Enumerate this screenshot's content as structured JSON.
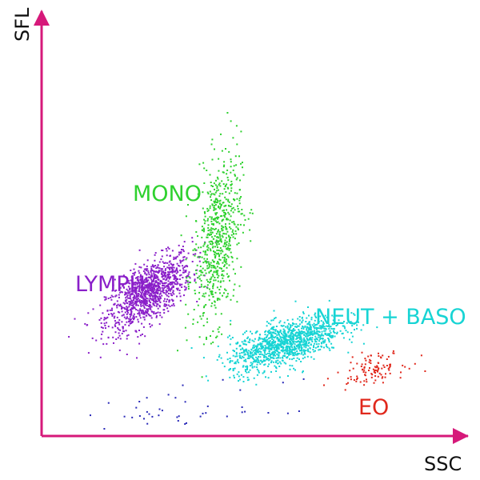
{
  "chart_data": {
    "type": "scatter",
    "title": "",
    "xlabel": "SSC",
    "ylabel": "SFL",
    "xlim": [
      0,
      1
    ],
    "ylim": [
      0,
      1
    ],
    "grid": false,
    "legend": "none",
    "axis_color": "#d6197a",
    "series": [
      {
        "name": "LYMPH",
        "color": "#8a1fc9",
        "count": 1100,
        "center": [
          0.25,
          0.34
        ],
        "spread": [
          0.05,
          0.045
        ],
        "correlation": 0.65,
        "values_note": "point cloud"
      },
      {
        "name": "MONO",
        "color": "#2fd12f",
        "count": 650,
        "center": [
          0.41,
          0.46
        ],
        "spread": [
          0.028,
          0.1
        ],
        "correlation": 0.35,
        "values_note": "point cloud"
      },
      {
        "name": "NEUT + BASO",
        "color": "#17d4d4",
        "count": 1200,
        "center": [
          0.57,
          0.22
        ],
        "spread": [
          0.065,
          0.032
        ],
        "correlation": 0.6,
        "values_note": "point cloud"
      },
      {
        "name": "EO",
        "color": "#e0281c",
        "count": 110,
        "center": [
          0.77,
          0.16
        ],
        "spread": [
          0.04,
          0.018
        ],
        "correlation": 0.4,
        "values_note": "point cloud"
      },
      {
        "name": "",
        "color": "#2a2ab8",
        "count": 45,
        "center": [
          0.33,
          0.06
        ],
        "spread": [
          0.12,
          0.03
        ],
        "correlation": 0.2,
        "values_note": "point cloud"
      }
    ],
    "labels": {
      "lymph": "LYMPH",
      "mono": "MONO",
      "neut": "NEUT + BASO",
      "eo": "EO"
    }
  }
}
